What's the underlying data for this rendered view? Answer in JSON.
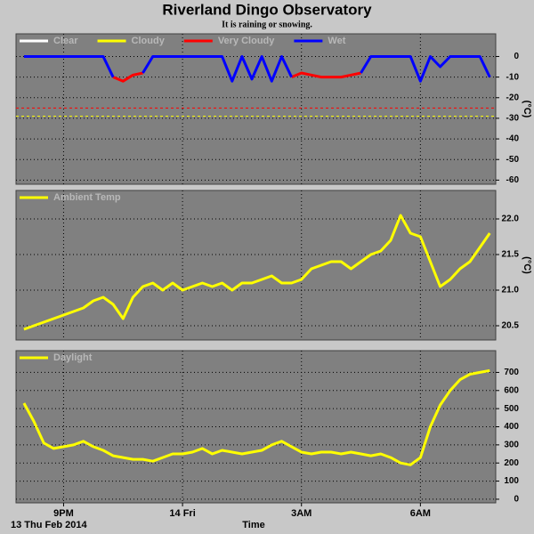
{
  "chart_data": [
    {
      "type": "line",
      "title": "Riverland Dingo Observatory",
      "subtitle": "It is raining or snowing.",
      "ylabel": "(°C)",
      "x": [
        20,
        20.25,
        20.5,
        20.75,
        21,
        21.25,
        21.5,
        21.75,
        22,
        22.25,
        22.5,
        22.75,
        23,
        23.25,
        23.5,
        23.75,
        24,
        24.25,
        24.5,
        24.75,
        25,
        25.25,
        25.5,
        25.75,
        26,
        26.25,
        26.5,
        26.75,
        27,
        27.25,
        27.5,
        27.75,
        28,
        28.25,
        28.5,
        28.75,
        29,
        29.25,
        29.5,
        29.75,
        30,
        30.25,
        30.5,
        30.75,
        31,
        31.25,
        31.5,
        31.75
      ],
      "xlim": [
        19.8,
        31.9
      ],
      "ylim": [
        -62,
        11
      ],
      "yticks": [
        0,
        -10,
        -20,
        -30,
        -40,
        -50,
        -60
      ],
      "grid": true,
      "reference_lines": [
        {
          "value": -25,
          "color": "#ff0000"
        },
        {
          "value": -29,
          "color": "#ffff00"
        }
      ],
      "series": [
        {
          "name": "Clear",
          "color": "#ffffff",
          "values": [
            null,
            null,
            null,
            null,
            null,
            null,
            null,
            null,
            null,
            null,
            null,
            null,
            null,
            null,
            null,
            null,
            null,
            null,
            null,
            null,
            null,
            null,
            null,
            null,
            null,
            null,
            null,
            null,
            null,
            null,
            null,
            null,
            null,
            null,
            null,
            null,
            null,
            null,
            null,
            null,
            null,
            null,
            null,
            null,
            null,
            null,
            null,
            null
          ]
        },
        {
          "name": "Cloudy",
          "color": "#ffff00",
          "values": [
            null,
            null,
            null,
            null,
            null,
            null,
            null,
            null,
            null,
            null,
            null,
            null,
            null,
            null,
            null,
            null,
            null,
            null,
            null,
            null,
            null,
            null,
            null,
            null,
            null,
            null,
            null,
            null,
            null,
            null,
            null,
            null,
            null,
            null,
            null,
            null,
            null,
            null,
            null,
            null,
            null,
            null,
            null,
            null,
            null,
            null,
            null,
            null
          ]
        },
        {
          "name": "Very Cloudy",
          "color": "#ff0000",
          "values": [
            null,
            null,
            null,
            null,
            null,
            null,
            null,
            null,
            null,
            -10,
            -12,
            -9,
            -8,
            null,
            null,
            null,
            null,
            null,
            null,
            null,
            null,
            null,
            null,
            null,
            null,
            null,
            null,
            -10,
            -8,
            -9,
            -10,
            -10,
            -10,
            -9,
            -8,
            null,
            null,
            null,
            null,
            null,
            null,
            null,
            null,
            null,
            null,
            null,
            null,
            null
          ]
        },
        {
          "name": "Wet",
          "color": "#0000ff",
          "values": [
            0,
            0,
            0,
            0,
            0,
            0,
            0,
            0,
            0,
            -10,
            null,
            null,
            -8,
            0,
            0,
            0,
            0,
            0,
            0,
            0,
            0,
            -12,
            0,
            -11,
            0,
            -12,
            0,
            -10,
            null,
            null,
            null,
            null,
            null,
            null,
            -8,
            0,
            0,
            0,
            0,
            0,
            -12,
            0,
            -5,
            0,
            0,
            0,
            0,
            -10
          ]
        }
      ]
    },
    {
      "type": "line",
      "ylabel": "(°C)",
      "x": [
        20,
        20.25,
        20.5,
        20.75,
        21,
        21.25,
        21.5,
        21.75,
        22,
        22.25,
        22.5,
        22.75,
        23,
        23.25,
        23.5,
        23.75,
        24,
        24.25,
        24.5,
        24.75,
        25,
        25.25,
        25.5,
        25.75,
        26,
        26.25,
        26.5,
        26.75,
        27,
        27.25,
        27.5,
        27.75,
        28,
        28.25,
        28.5,
        28.75,
        29,
        29.25,
        29.5,
        29.75,
        30,
        30.25,
        30.5,
        30.75,
        31,
        31.25,
        31.5,
        31.75
      ],
      "xlim": [
        19.8,
        31.9
      ],
      "ylim": [
        20.3,
        22.4
      ],
      "yticks": [
        20.5,
        {
          "value": 21,
          "label": "21.0"
        },
        21.5,
        {
          "value": 22,
          "label": "22.0"
        }
      ],
      "grid": true,
      "series": [
        {
          "name": "Ambient Temp",
          "color": "#ffff00",
          "values": [
            20.45,
            20.5,
            20.55,
            20.6,
            20.65,
            20.7,
            20.75,
            20.85,
            20.9,
            20.8,
            20.6,
            20.9,
            21.05,
            21.1,
            21.0,
            21.1,
            21.0,
            21.05,
            21.1,
            21.05,
            21.1,
            21.0,
            21.1,
            21.1,
            21.15,
            21.2,
            21.1,
            21.1,
            21.15,
            21.3,
            21.35,
            21.4,
            21.4,
            21.3,
            21.4,
            21.5,
            21.55,
            21.7,
            22.05,
            21.8,
            21.75,
            21.4,
            21.05,
            21.15,
            21.3,
            21.4,
            21.6,
            21.8
          ]
        }
      ]
    },
    {
      "type": "line",
      "xlabel": "Time",
      "date_label": "13 Thu Feb 2014",
      "x": [
        20,
        20.25,
        20.5,
        20.75,
        21,
        21.25,
        21.5,
        21.75,
        22,
        22.25,
        22.5,
        22.75,
        23,
        23.25,
        23.5,
        23.75,
        24,
        24.25,
        24.5,
        24.75,
        25,
        25.25,
        25.5,
        25.75,
        26,
        26.25,
        26.5,
        26.75,
        27,
        27.25,
        27.5,
        27.75,
        28,
        28.25,
        28.5,
        28.75,
        29,
        29.25,
        29.5,
        29.75,
        30,
        30.25,
        30.5,
        30.75,
        31,
        31.25,
        31.5,
        31.75
      ],
      "xlim": [
        19.8,
        31.9
      ],
      "xticks": [
        {
          "value": 21,
          "label": "9PM"
        },
        {
          "value": 24,
          "label": "14 Fri"
        },
        {
          "value": 27,
          "label": "3AM"
        },
        {
          "value": 30,
          "label": "6AM"
        }
      ],
      "ylim": [
        -20,
        820
      ],
      "yticks": [
        0,
        100,
        200,
        300,
        400,
        500,
        600,
        700
      ],
      "grid": true,
      "series": [
        {
          "name": "Daylight",
          "color": "#ffff00",
          "values": [
            530,
            430,
            310,
            280,
            290,
            300,
            320,
            290,
            270,
            240,
            230,
            220,
            220,
            210,
            230,
            250,
            250,
            260,
            280,
            250,
            270,
            260,
            250,
            260,
            270,
            300,
            320,
            290,
            260,
            250,
            260,
            260,
            250,
            260,
            250,
            240,
            250,
            230,
            200,
            190,
            230,
            400,
            520,
            600,
            660,
            690,
            700,
            710
          ]
        }
      ]
    }
  ]
}
